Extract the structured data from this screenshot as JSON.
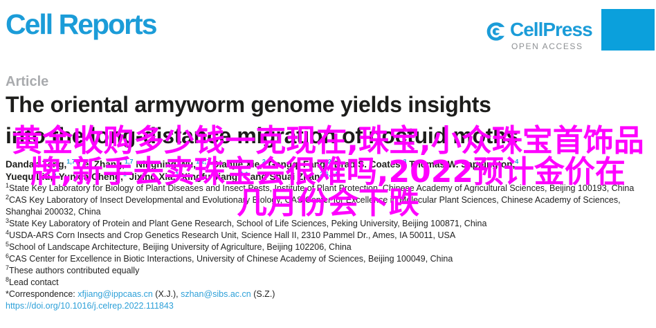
{
  "journal": {
    "name": "Cell Reports",
    "publisher_wordmark": "CellPress",
    "open_access_label": "OPEN ACCESS",
    "brand_blue": "#1b9cd8",
    "block_blue": "#0ba0dc"
  },
  "article": {
    "type_label": "Article",
    "title_line1": "The oriental armyworm genome yields insights",
    "title_line2": "into the long-distance migration of noctuid moths",
    "authors_line1": [
      {
        "name": "Dandan Tang,",
        "sup": "1,7"
      },
      {
        "name": "Lei Zhang,",
        "sup": "1,7"
      },
      {
        "name": "Ningning Wu,",
        "sup": "1,2,7"
      },
      {
        "name": "Dianjie Xie,",
        "sup": "2"
      },
      {
        "name": "Gangqi Fang,",
        "sup": "2"
      },
      {
        "name": "Brad S. Coates,",
        "sup": "3"
      },
      {
        "name": "Thomas W. Sappington,",
        "sup": "4"
      }
    ],
    "authors_line2": [
      {
        "name": "Yuequ Liu,",
        "sup": "5"
      },
      {
        "name": "Yunxia Cheng,",
        "sup": "1"
      },
      {
        "name": "Jixing Xia,",
        "sup": "1"
      },
      {
        "name": "Xingfu Jiang,",
        "sup": "1,*"
      },
      {
        "name": "and Shuai Zhan",
        "sup": "2,6,8,*"
      }
    ],
    "affiliations": [
      {
        "sup": "1",
        "text": "State Key Laboratory for Biology of Plant Diseases and Insect Pests, Institute of Plant Protection, Chinese Academy of Agricultural Sciences, Beijing 100193, China"
      },
      {
        "sup": "2",
        "text": "CAS Key Laboratory of Insect Developmental and Evolutionary Biology, CAS Center for Excellence in Molecular Plant Sciences, Chinese Academy of Sciences, Shanghai 200032, China"
      },
      {
        "sup": "3",
        "text": "State Key Laboratory of Protein and Plant Gene Research, School of Life Sciences, Peking University, Beijing 100871, China"
      },
      {
        "sup": "4",
        "text": "USDA-ARS Corn Insects and Crop Genetics Research Unit, Science Hall II, 2310 Pammel Dr., Ames, IA 50011, USA"
      },
      {
        "sup": "5",
        "text": "School of Landscape Architecture, Beijing University of Agriculture, Beijing 102206, China"
      },
      {
        "sup": "6",
        "text": "CAS Center for Excellence in Biotic Interactions, University of Chinese Academy of Sciences, Beijing 100049, China"
      },
      {
        "sup": "7",
        "text": "These authors contributed equally"
      },
      {
        "sup": "8",
        "text": "Lead contact"
      }
    ],
    "correspondence": [
      {
        "text": "*Correspondence: ",
        "link": false
      },
      {
        "text": "xfjiang@ippcaas.cn",
        "link": true
      },
      {
        "text": " (X.J.), ",
        "link": false
      },
      {
        "text": "szhan@sibs.ac.cn",
        "link": true
      },
      {
        "text": " (S.Z.)",
        "link": false
      }
    ],
    "doi": "https://doi.org/10.1016/j.celrep.2022.111843"
  },
  "overlay": {
    "color": "#ff00ff",
    "line1": "黄金收购多少钱一克现在,珠宝,小众珠宝首饰品",
    "line2": "牌,新手去卖珠宝会很难吗,2022预计金价在",
    "line3": "几月份会下跌"
  }
}
